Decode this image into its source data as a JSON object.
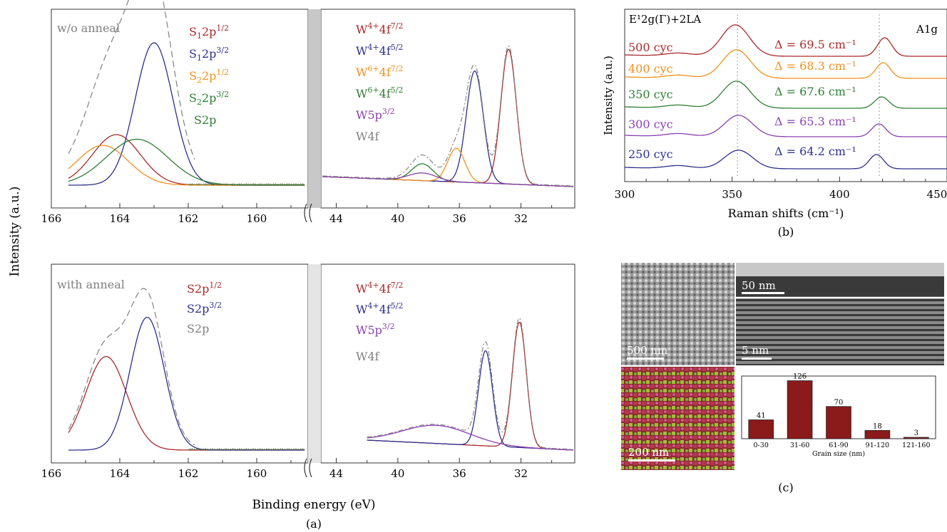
{
  "colors": {
    "red": "#a82a2a",
    "blue": "#2d2f8c",
    "orange": "#f0901e",
    "green": "#2e7d32",
    "purple": "#8a3fb0",
    "gray": "#808080",
    "bar": "#8b1a1a"
  },
  "panel_a": {
    "label": "(a)",
    "ylabel": "Intensity (a.u.)",
    "xlabel": "Binding energy (eV)",
    "s_ticks": [
      "166",
      "164",
      "162",
      "160"
    ],
    "w_ticks": [
      "44",
      "40",
      "36",
      "32"
    ],
    "top": {
      "title": "w/o anneal",
      "s_legend": [
        {
          "base": "S",
          "sub": "1",
          "mid": "2p",
          "sup": "1/2",
          "color": "red"
        },
        {
          "base": "S",
          "sub": "1",
          "mid": "2p",
          "sup": "3/2",
          "color": "blue"
        },
        {
          "base": "S",
          "sub": "2",
          "mid": "2p",
          "sup": "1/2",
          "color": "orange"
        },
        {
          "base": "S",
          "sub": "2",
          "mid": "2p",
          "sup": "3/2",
          "color": "green"
        },
        {
          "base": "S2p",
          "sub": "",
          "mid": "",
          "sup": "",
          "color": "green"
        }
      ],
      "w_legend": [
        {
          "base": "W",
          "sup1": "4+",
          "mid": "4f",
          "sup": "7/2",
          "color": "red"
        },
        {
          "base": "W",
          "sup1": "4+",
          "mid": "4f",
          "sup": "5/2",
          "color": "blue"
        },
        {
          "base": "W",
          "sup1": "6+",
          "mid": "4f",
          "sup": "7/2",
          "color": "orange"
        },
        {
          "base": "W",
          "sup1": "6+",
          "mid": "4f",
          "sup": "5/2",
          "color": "green"
        },
        {
          "base": "W5p",
          "sup1": "",
          "mid": "",
          "sup": "3/2",
          "color": "purple"
        },
        {
          "base": "W4f",
          "sup1": "",
          "mid": "",
          "sup": "",
          "color": "gray"
        }
      ]
    },
    "bottom": {
      "title": "with anneal",
      "s_legend": [
        {
          "base": "S2p",
          "sub": "",
          "mid": "",
          "sup": "1/2",
          "color": "red"
        },
        {
          "base": "S2p",
          "sub": "",
          "mid": "",
          "sup": "3/2",
          "color": "blue"
        },
        {
          "base": "S2p",
          "sub": "",
          "mid": "",
          "sup": "",
          "color": "gray"
        }
      ],
      "w_legend": [
        {
          "base": "W",
          "sup1": "4+",
          "mid": "4f",
          "sup": "7/2",
          "color": "red"
        },
        {
          "base": "W",
          "sup1": "4+",
          "mid": "4f",
          "sup": "5/2",
          "color": "blue"
        },
        {
          "base": "W5p",
          "sup1": "",
          "mid": "",
          "sup": "3/2",
          "color": "purple"
        },
        {
          "base": "W4f",
          "sup1": "",
          "mid": "",
          "sup": "",
          "color": "gray"
        }
      ]
    }
  },
  "panel_b": {
    "label": "(b)",
    "xlabel": "Raman shifts (cm⁻¹)",
    "ylabel": "Intensity (a.u.)",
    "xticks": [
      "300",
      "350",
      "400",
      "450"
    ],
    "peak_left": "E¹2g(Γ)+2LA",
    "peak_right": "A1g",
    "series": [
      {
        "name": "500 cyc",
        "delta": "Δ = 69.5 cm⁻¹",
        "color": "red"
      },
      {
        "name": "400 cyc",
        "delta": "Δ = 68.3 cm⁻¹",
        "color": "orange"
      },
      {
        "name": "350 cyc",
        "delta": "Δ = 67.6 cm⁻¹",
        "color": "green"
      },
      {
        "name": "300 cyc",
        "delta": "Δ = 65.3 cm⁻¹",
        "color": "purple"
      },
      {
        "name": "250 cyc",
        "delta": "Δ = 64.2 cm⁻¹",
        "color": "blue"
      }
    ]
  },
  "panel_c": {
    "label": "(c)",
    "scale_sem": "500 nm",
    "scale_tem1": "50 nm",
    "scale_tem2": "5 nm",
    "scale_ebsd": "200 nm"
  },
  "chart_data": [
    {
      "type": "line",
      "title": "w/o anneal",
      "xlabel": "Binding energy (eV)",
      "ylabel": "Intensity (a.u.)",
      "xlim_s": [
        166,
        158.5
      ],
      "xlim_w": [
        45,
        28.5
      ],
      "peaks_s": [
        {
          "name": "S1 2p1/2",
          "center": 164.1,
          "height": 0.33,
          "width": 0.7
        },
        {
          "name": "S1 2p3/2",
          "center": 163.0,
          "height": 0.93,
          "width": 0.55
        },
        {
          "name": "S2 2p1/2",
          "center": 164.5,
          "height": 0.26,
          "width": 0.75
        },
        {
          "name": "S2 2p3/2",
          "center": 163.5,
          "height": 0.3,
          "width": 0.9
        }
      ],
      "peaks_w": [
        {
          "name": "W4+ 4f7/2",
          "center": 32.8,
          "height": 0.88,
          "width": 0.5
        },
        {
          "name": "W4+ 4f5/2",
          "center": 35.0,
          "height": 0.73,
          "width": 0.55
        },
        {
          "name": "W6+ 4f7/2",
          "center": 36.2,
          "height": 0.22,
          "width": 0.55
        },
        {
          "name": "W6+ 4f5/2",
          "center": 38.4,
          "height": 0.11,
          "width": 0.7
        },
        {
          "name": "W5p3/2",
          "center": 38.4,
          "height": 0.05,
          "width": 0.9
        }
      ]
    },
    {
      "type": "line",
      "title": "with anneal",
      "xlabel": "Binding energy (eV)",
      "ylabel": "Intensity (a.u.)",
      "xlim_s": [
        166,
        158.5
      ],
      "xlim_w": [
        45,
        28.5
      ],
      "peaks_s": [
        {
          "name": "S2p1/2",
          "center": 164.4,
          "height": 0.62,
          "width": 0.6
        },
        {
          "name": "S2p3/2",
          "center": 163.2,
          "height": 0.88,
          "width": 0.5
        }
      ],
      "peaks_w": [
        {
          "name": "W4+ 4f7/2",
          "center": 32.1,
          "height": 0.83,
          "width": 0.45
        },
        {
          "name": "W4+ 4f5/2",
          "center": 34.3,
          "height": 0.63,
          "width": 0.45
        },
        {
          "name": "W5p3/2",
          "center": 37.5,
          "height": 0.12,
          "width": 2.2
        }
      ]
    },
    {
      "type": "line",
      "xlabel": "Raman shifts (cm⁻¹)",
      "ylabel": "Intensity (a.u.)",
      "xlim": [
        300,
        450
      ],
      "series": [
        {
          "name": "500 cyc",
          "E_peak": 351.5,
          "A_peak": 421.0
        },
        {
          "name": "400 cyc",
          "E_peak": 352.0,
          "A_peak": 420.3
        },
        {
          "name": "350 cyc",
          "E_peak": 352.0,
          "A_peak": 419.6
        },
        {
          "name": "300 cyc",
          "E_peak": 353.0,
          "A_peak": 418.3
        },
        {
          "name": "250 cyc",
          "E_peak": 353.0,
          "A_peak": 417.2
        }
      ]
    },
    {
      "type": "bar",
      "xlabel": "Grain size (nm)",
      "categories": [
        "0-30",
        "31-60",
        "61-90",
        "91-120",
        "121-160"
      ],
      "values": [
        41,
        126,
        70,
        18,
        3
      ],
      "ylim": [
        0,
        130
      ]
    }
  ]
}
